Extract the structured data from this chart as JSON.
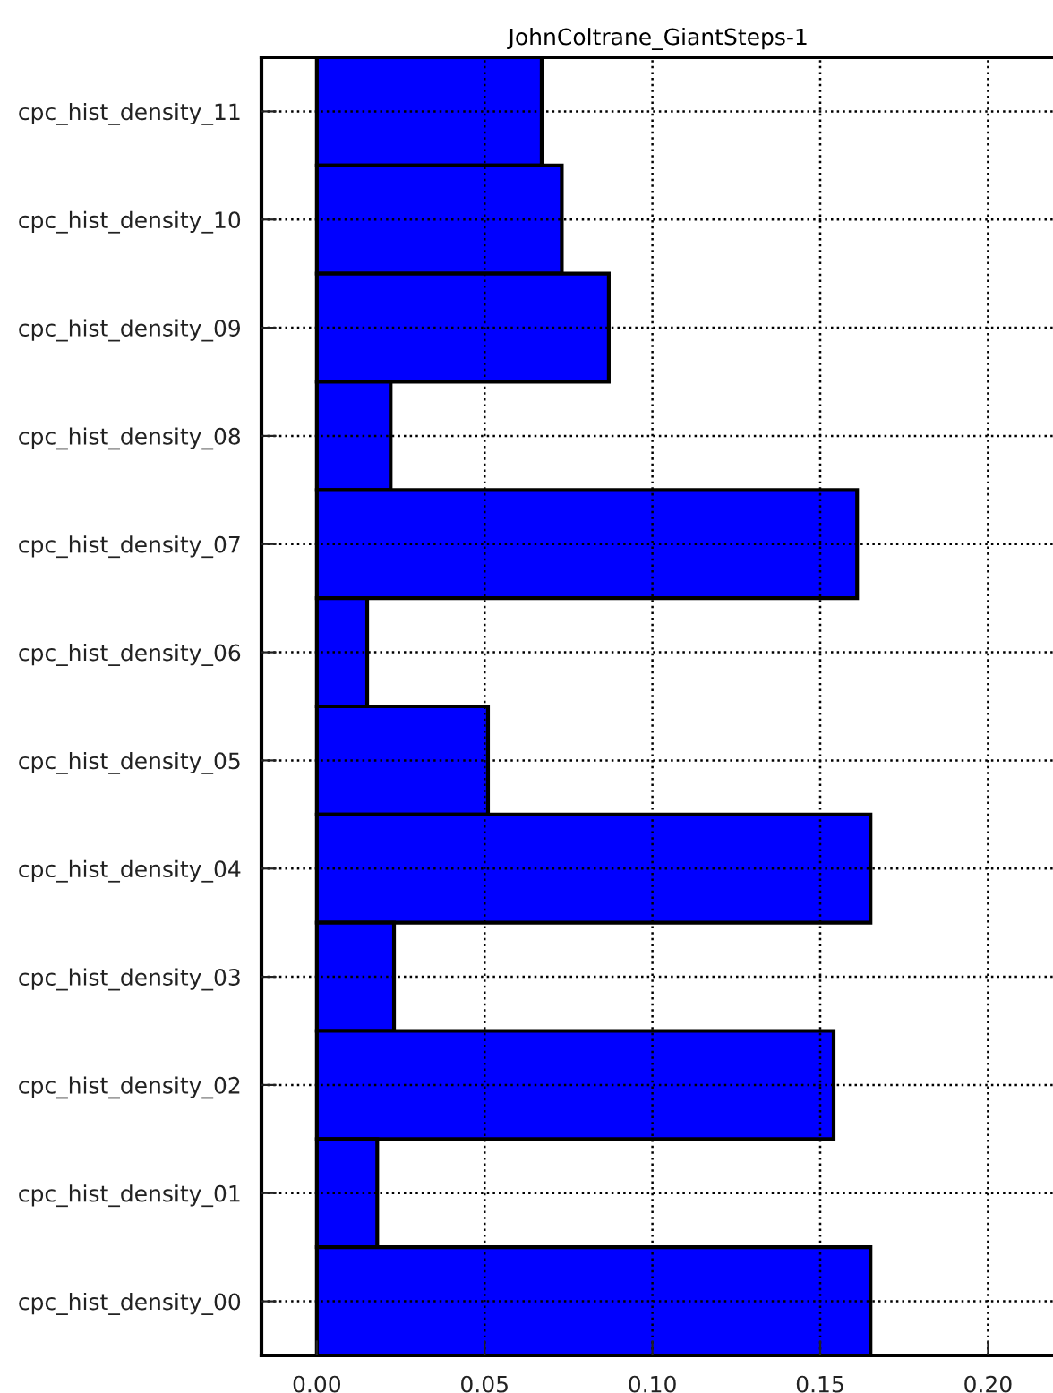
{
  "chart_data": {
    "type": "bar",
    "orientation": "horizontal",
    "title": "JohnColtrane_GiantSteps-1",
    "categories": [
      "cpc_hist_density_11",
      "cpc_hist_density_10",
      "cpc_hist_density_09",
      "cpc_hist_density_08",
      "cpc_hist_density_07",
      "cpc_hist_density_06",
      "cpc_hist_density_05",
      "cpc_hist_density_04",
      "cpc_hist_density_03",
      "cpc_hist_density_02",
      "cpc_hist_density_01",
      "cpc_hist_density_00"
    ],
    "values": [
      0.067,
      0.073,
      0.087,
      0.022,
      0.161,
      0.015,
      0.051,
      0.165,
      0.023,
      0.154,
      0.018,
      0.165
    ],
    "color": "#0000ff",
    "xlim": [
      -0.0165,
      0.22
    ],
    "xticks": [
      {
        "value": 0,
        "label": "0.00"
      },
      {
        "value": 0.05,
        "label": "0.05"
      },
      {
        "value": 0.1,
        "label": "0.10"
      },
      {
        "value": 0.15,
        "label": "0.15"
      },
      {
        "value": 0.2,
        "label": "0.20"
      }
    ],
    "grid": true,
    "line_style": "dotted"
  }
}
